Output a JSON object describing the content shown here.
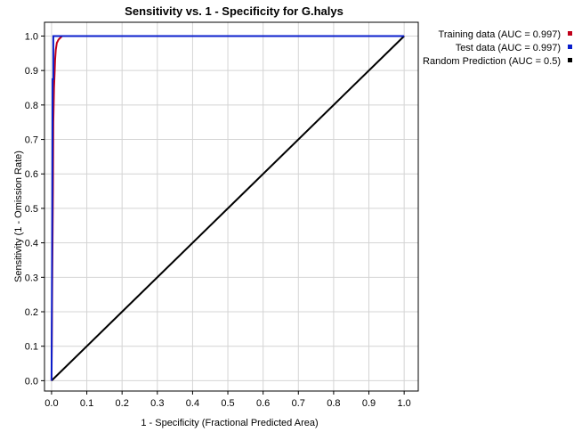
{
  "chart_data": {
    "type": "line",
    "title": "Sensitivity vs. 1 - Specificity for G.halys",
    "xlabel": "1 - Specificity  (Fractional Predicted Area)",
    "ylabel": "Sensitivity  (1 - Omission Rate)",
    "xlim": [
      -0.02,
      1.04
    ],
    "ylim": [
      -0.03,
      1.04
    ],
    "x_ticks": [
      "0.0",
      "0.1",
      "0.2",
      "0.3",
      "0.4",
      "0.5",
      "0.6",
      "0.7",
      "0.8",
      "0.9",
      "1.0"
    ],
    "y_ticks": [
      "0.0",
      "0.1",
      "0.2",
      "0.3",
      "0.4",
      "0.5",
      "0.6",
      "0.7",
      "0.8",
      "0.9",
      "1.0"
    ],
    "grid": true,
    "legend_position": "top-right outside",
    "series": [
      {
        "name": "Training data (AUC = 0.997)",
        "color": "#c0001a",
        "x": [
          0.0,
          0.002,
          0.004,
          0.005,
          0.007,
          0.009,
          0.01,
          0.012,
          0.015,
          0.02,
          0.03,
          1.0
        ],
        "y": [
          0.0,
          0.3,
          0.55,
          0.75,
          0.85,
          0.9,
          0.93,
          0.96,
          0.98,
          0.99,
          1.0,
          1.0
        ]
      },
      {
        "name": "Test data (AUC = 0.997)",
        "color": "#0a1ecc",
        "x": [
          0.0,
          0.002,
          0.003,
          0.005,
          0.005,
          0.01,
          1.0
        ],
        "y": [
          0.0,
          0.5,
          0.875,
          0.875,
          1.0,
          1.0,
          1.0
        ]
      },
      {
        "name": "Random Prediction (AUC = 0.5)",
        "color": "#000000",
        "x": [
          0.0,
          1.0
        ],
        "y": [
          0.0,
          1.0
        ]
      }
    ]
  }
}
